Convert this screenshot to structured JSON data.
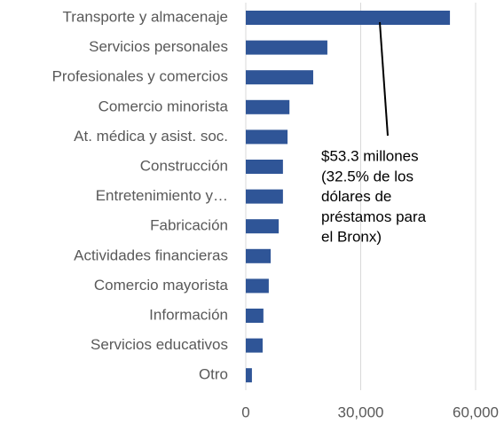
{
  "chart_data": {
    "type": "bar",
    "orientation": "horizontal",
    "categories": [
      "Transporte y almacenaje",
      "Servicios personales",
      "Profesionales y comercios",
      "Comercio minorista",
      "At. médica y asist. soc.",
      "Construcción",
      "Entretenimiento y…",
      "Fabricación",
      "Actividades financieras",
      "Comercio mayorista",
      "Información",
      "Servicios educativos",
      "Otro"
    ],
    "values": [
      53300,
      21300,
      17600,
      11400,
      10900,
      9700,
      9700,
      8600,
      6500,
      6000,
      4600,
      4400,
      1600
    ],
    "color": "#2f5597",
    "xlim": [
      0,
      60000
    ],
    "xticks": [
      0,
      {
        "value": 30000,
        "label": "30,000"
      },
      {
        "value": 60000,
        "label": "60,000"
      }
    ],
    "grid": true,
    "annotation": [
      "$53.3 millones",
      "(32.5% de los",
      "dólares de",
      "préstamos para",
      "el Bronx)"
    ]
  }
}
